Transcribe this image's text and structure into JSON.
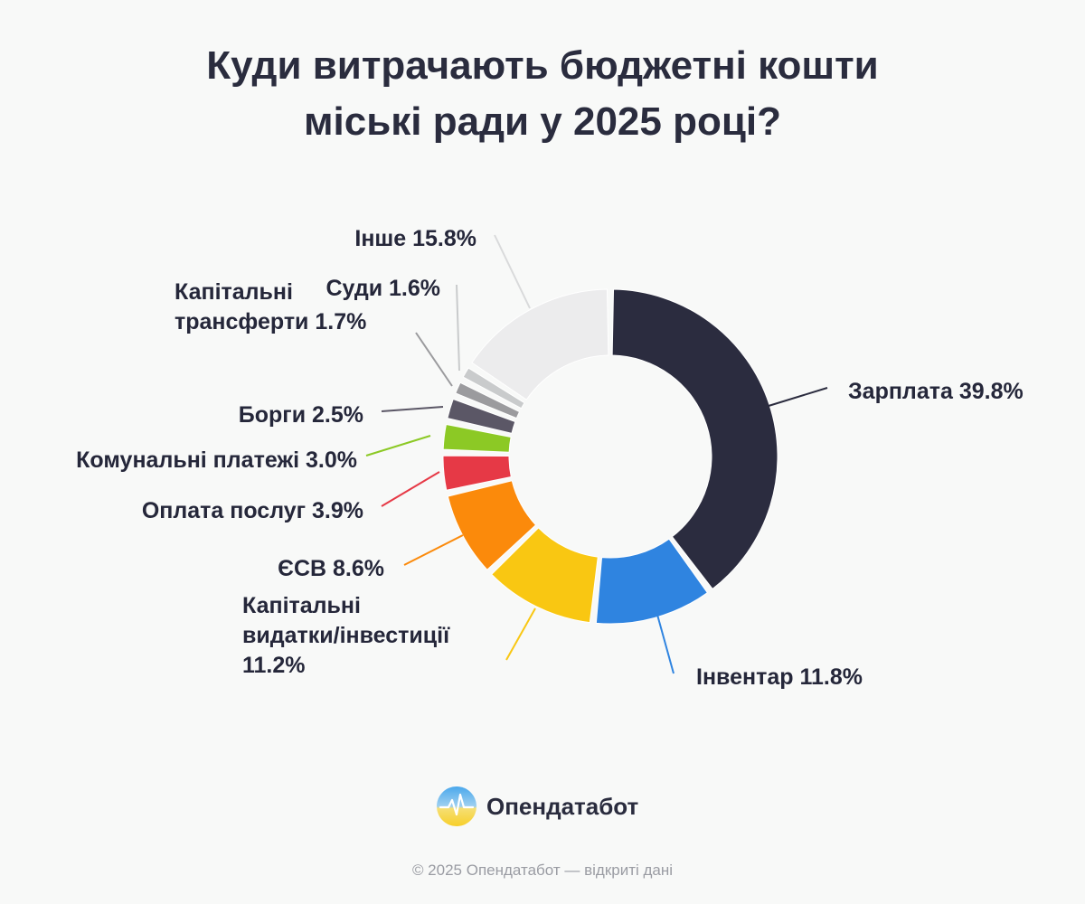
{
  "header": {
    "title_line1": "Куди витрачають бюджетні кошти",
    "title_line2": "міські ради у 2025 році?"
  },
  "chart_data": {
    "type": "pie",
    "style": "donut",
    "slices": [
      {
        "label": "Зарплата",
        "value": 39.8,
        "color": "#2b2c3f"
      },
      {
        "label": "Інвентар",
        "value": 11.8,
        "color": "#2f84e0"
      },
      {
        "label": "Капітальні видатки/інвестиції",
        "value": 11.2,
        "color": "#f9c712"
      },
      {
        "label": "ЄСВ",
        "value": 8.6,
        "color": "#fb8a0b"
      },
      {
        "label": "Оплата послуг",
        "value": 3.9,
        "color": "#e63946"
      },
      {
        "label": "Комунальні платежі",
        "value": 3.0,
        "color": "#8cc925"
      },
      {
        "label": "Борги",
        "value": 2.5,
        "color": "#5b5766"
      },
      {
        "label": "Капітальні трансферти",
        "value": 1.7,
        "color": "#9b9b9e"
      },
      {
        "label": "Суди",
        "value": 1.6,
        "color": "#c9cbcc"
      },
      {
        "label": "Інше",
        "value": 15.8,
        "color": "#ececed"
      }
    ],
    "slice_labels": [
      [
        "Зарплата 39.8%"
      ],
      [
        "Інвентар 11.8%"
      ],
      [
        "Капітальні",
        "видатки/інвестиції",
        "11.2%"
      ],
      [
        "ЄСВ 8.6%"
      ],
      [
        "Оплата послуг 3.9%"
      ],
      [
        "Комунальні платежі 3.0%"
      ],
      [
        "Борги 2.5%"
      ],
      [
        "Капітальні",
        "трансферти 1.7%"
      ],
      [
        "Суди 1.6%"
      ],
      [
        "Інше 15.8%"
      ]
    ]
  },
  "brand": {
    "name": "Опендатабот",
    "colors": {
      "top": "#4aa8ec",
      "bottom": "#f7cf2a"
    }
  },
  "footer": {
    "text": "© 2025 Опендатабот — відкриті дані"
  }
}
